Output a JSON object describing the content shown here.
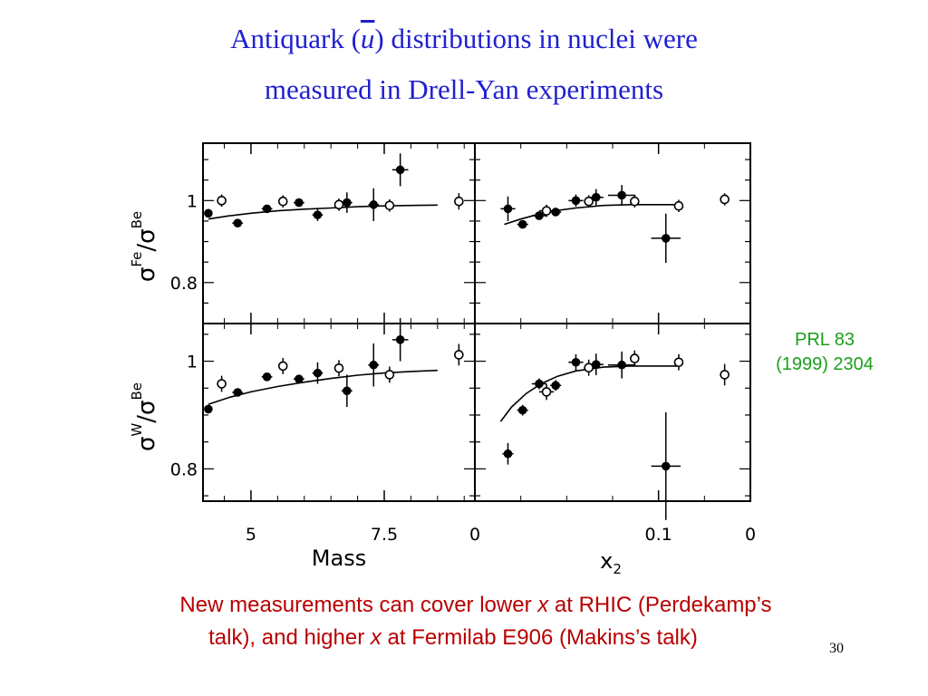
{
  "title": {
    "line1_pre": "Antiquark (",
    "line1_sym": "u",
    "line1_post": ") distributions in nuclei were",
    "line2": "measured in Drell-Yan experiments"
  },
  "reference": {
    "line1": "PRL 83",
    "line2": "(1999) 2304"
  },
  "caption": {
    "line1_a": "New measurements can cover lower ",
    "line1_x": "x",
    "line1_b": " at RHIC (Perdekamp’s",
    "line2_a": "talk), and higher ",
    "line2_x": "x",
    "line2_b": " at Fermilab E906 (Makins’s talk)"
  },
  "page_number": "30",
  "colors": {
    "title": "#1f1fd0",
    "reference": "#1aa01a",
    "caption": "#b80000"
  },
  "chart_data": [
    {
      "type": "scatter",
      "panel": "Fe/Be vs Mass",
      "ylabel": "σFe/σBe",
      "ytick_labels": [
        "1",
        "0.8"
      ],
      "ylim": [
        0.7,
        1.14
      ],
      "xlim": [
        4.1,
        9.2
      ],
      "xtick_labels": [
        "5",
        "7.5"
      ],
      "xlabel": "Mass",
      "series": [
        {
          "marker": "filled",
          "points": [
            [
              4.2,
              0.969,
              0.14,
              0
            ],
            [
              4.75,
              0.945,
              0.2,
              0
            ],
            [
              5.3,
              0.98,
              0.2,
              0
            ],
            [
              5.9,
              0.995,
              0.2,
              0
            ],
            [
              6.25,
              0.965,
              0.2,
              0.015
            ],
            [
              6.8,
              0.995,
              0.2,
              0.025
            ],
            [
              7.3,
              0.99,
              0.2,
              0.04
            ],
            [
              7.8,
              1.075,
              0.3,
              0.04
            ]
          ]
        },
        {
          "marker": "open",
          "points": [
            [
              4.45,
              1.0,
              0,
              0.015
            ],
            [
              5.6,
              0.998,
              0.08,
              0.015
            ],
            [
              6.65,
              0.99,
              0.08,
              0.015
            ],
            [
              7.6,
              0.988,
              0,
              0.015
            ],
            [
              8.9,
              0.998,
              0,
              0.02
            ]
          ]
        }
      ],
      "curve": [
        [
          4.2,
          0.955
        ],
        [
          4.6,
          0.963
        ],
        [
          5.0,
          0.969
        ],
        [
          5.5,
          0.975
        ],
        [
          6.0,
          0.979
        ],
        [
          6.5,
          0.982
        ],
        [
          7.0,
          0.985
        ],
        [
          7.5,
          0.987
        ],
        [
          8.0,
          0.988
        ],
        [
          8.5,
          0.989
        ]
      ]
    },
    {
      "type": "scatter",
      "panel": "Fe/Be vs x2",
      "xlim": [
        0.0,
        0.15
      ],
      "xtick_labels": [
        "0",
        "0.1",
        "0"
      ],
      "xlabel": "x2",
      "ylim": [
        0.7,
        1.14
      ],
      "series": [
        {
          "marker": "filled",
          "points": [
            [
              0.018,
              0.98,
              0.008,
              0.03
            ],
            [
              0.026,
              0.942,
              0.006,
              0.01
            ],
            [
              0.035,
              0.963,
              0.008,
              0.01
            ],
            [
              0.044,
              0.972,
              0.006,
              0.01
            ],
            [
              0.055,
              1.0,
              0.008,
              0.015
            ],
            [
              0.066,
              1.008,
              0.008,
              0.02
            ],
            [
              0.08,
              1.013,
              0.015,
              0.025
            ],
            [
              0.104,
              0.908,
              0.016,
              0.06
            ]
          ]
        },
        {
          "marker": "open",
          "points": [
            [
              0.039,
              0.975,
              0.008,
              0.015
            ],
            [
              0.062,
              0.998,
              0,
              0.015
            ],
            [
              0.087,
              0.998,
              0,
              0.015
            ],
            [
              0.111,
              0.987,
              0,
              0.015
            ],
            [
              0.136,
              1.003,
              0,
              0.015
            ]
          ]
        }
      ],
      "curve": [
        [
          0.016,
          0.942
        ],
        [
          0.025,
          0.955
        ],
        [
          0.035,
          0.967
        ],
        [
          0.045,
          0.976
        ],
        [
          0.055,
          0.982
        ],
        [
          0.07,
          0.988
        ],
        [
          0.085,
          0.99
        ],
        [
          0.1,
          0.99
        ],
        [
          0.11,
          0.99
        ]
      ]
    },
    {
      "type": "scatter",
      "panel": "W/Be vs Mass",
      "ylabel": "σW/σBe",
      "ytick_labels": [
        "1",
        "0.8"
      ],
      "ylim": [
        0.74,
        1.07
      ],
      "xlim": [
        4.1,
        9.2
      ],
      "xtick_labels": [
        "5",
        "7.5"
      ],
      "xlabel": "Mass",
      "series": [
        {
          "marker": "filled",
          "points": [
            [
              4.2,
              0.911,
              0.14,
              0
            ],
            [
              4.75,
              0.942,
              0.2,
              0
            ],
            [
              5.3,
              0.971,
              0.2,
              0
            ],
            [
              5.9,
              0.967,
              0.2,
              0
            ],
            [
              6.25,
              0.978,
              0.2,
              0.02
            ],
            [
              6.8,
              0.945,
              0.2,
              0.03
            ],
            [
              7.3,
              0.993,
              0.2,
              0.04
            ],
            [
              7.8,
              1.04,
              0.3,
              0.04
            ]
          ]
        },
        {
          "marker": "open",
          "points": [
            [
              4.45,
              0.958,
              0,
              0.015
            ],
            [
              5.6,
              0.991,
              0.08,
              0.015
            ],
            [
              6.65,
              0.987,
              0.08,
              0.015
            ],
            [
              7.6,
              0.975,
              0,
              0.015
            ],
            [
              8.9,
              1.012,
              0,
              0.02
            ]
          ]
        }
      ],
      "curve": [
        [
          4.2,
          0.92
        ],
        [
          4.6,
          0.933
        ],
        [
          5.0,
          0.943
        ],
        [
          5.5,
          0.953
        ],
        [
          6.0,
          0.961
        ],
        [
          6.5,
          0.968
        ],
        [
          7.0,
          0.974
        ],
        [
          7.5,
          0.978
        ],
        [
          8.0,
          0.981
        ],
        [
          8.5,
          0.983
        ]
      ]
    },
    {
      "type": "scatter",
      "panel": "W/Be vs x2",
      "xlim": [
        0.0,
        0.15
      ],
      "xtick_labels": [
        "0",
        "0.1",
        "0"
      ],
      "xlabel": "x2",
      "ylim": [
        0.74,
        1.07
      ],
      "series": [
        {
          "marker": "filled",
          "points": [
            [
              0.018,
              0.828,
              0.006,
              0.02
            ],
            [
              0.026,
              0.909,
              0.006,
              0.01
            ],
            [
              0.035,
              0.958,
              0.008,
              0.01
            ],
            [
              0.044,
              0.955,
              0.006,
              0.01
            ],
            [
              0.055,
              0.998,
              0.008,
              0.015
            ],
            [
              0.066,
              0.994,
              0.008,
              0.02
            ],
            [
              0.08,
              0.993,
              0.015,
              0.025
            ],
            [
              0.104,
              0.805,
              0.016,
              0.1
            ]
          ]
        },
        {
          "marker": "open",
          "points": [
            [
              0.039,
              0.943,
              0.008,
              0.015
            ],
            [
              0.062,
              0.988,
              0,
              0.015
            ],
            [
              0.087,
              1.005,
              0,
              0.015
            ],
            [
              0.111,
              0.998,
              0,
              0.015
            ],
            [
              0.136,
              0.975,
              0,
              0.02
            ]
          ]
        }
      ],
      "curve": [
        [
          0.014,
          0.888
        ],
        [
          0.02,
          0.915
        ],
        [
          0.028,
          0.94
        ],
        [
          0.036,
          0.958
        ],
        [
          0.045,
          0.972
        ],
        [
          0.055,
          0.982
        ],
        [
          0.07,
          0.989
        ],
        [
          0.085,
          0.991
        ],
        [
          0.1,
          0.991
        ],
        [
          0.11,
          0.991
        ]
      ]
    }
  ]
}
